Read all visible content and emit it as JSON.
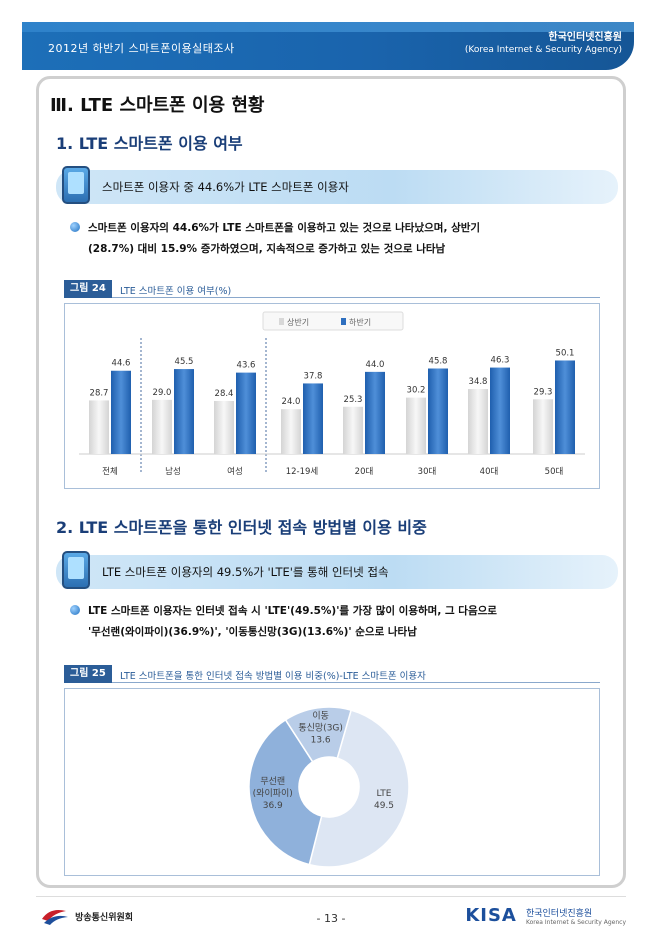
{
  "header": {
    "survey_title": "2012년 하반기 스마트폰이용실태조사",
    "org_name": "한국인터넷진흥원",
    "org_name_en": "(Korea Internet & Security Agency)"
  },
  "section_title": "Ⅲ. LTE 스마트폰 이용 현황",
  "sub1": {
    "title": "1. LTE 스마트폰 이용 여부",
    "highlight": "스마트폰 이용자 중 44.6%가 LTE 스마트폰 이용자",
    "para_line1": "스마트폰 이용자의 44.6%가 LTE 스마트폰을 이용하고 있는 것으로 나타났으며, 상반기",
    "para_line2": "(28.7%) 대비 15.9% 증가하였으며, 지속적으로 증가하고 있는 것으로 나타남",
    "fig_tag": "그림 24",
    "fig_caption": "LTE 스마트폰 이용 여부(%)"
  },
  "sub2": {
    "title": "2. LTE 스마트폰을 통한 인터넷 접속 방법별 이용 비중",
    "highlight": "LTE 스마트폰 이용자의 49.5%가 'LTE'를 통해 인터넷 접속",
    "para_line1": "LTE 스마트폰 이용자는 인터넷 접속 시 'LTE'(49.5%)'를 가장 많이 이용하며, 그 다음으로",
    "para_line2": "'무선랜(와이파이)(36.9%)', '이동통신망(3G)(13.6%)' 순으로 나타남",
    "fig_tag": "그림 25",
    "fig_caption": "LTE 스마트폰을 통한 인터넷 접속 방법별 이용 비중(%)-LTE 스마트폰 이용자"
  },
  "chart_data": [
    {
      "type": "bar",
      "categories": [
        "전체",
        "남성",
        "여성",
        "12-19세",
        "20대",
        "30대",
        "40대",
        "50대"
      ],
      "series": [
        {
          "name": "상반기",
          "values": [
            28.7,
            29.0,
            28.4,
            24.0,
            25.3,
            30.2,
            34.8,
            29.3
          ]
        },
        {
          "name": "하반기",
          "values": [
            44.6,
            45.5,
            43.6,
            37.8,
            44.0,
            45.8,
            46.3,
            50.1
          ]
        }
      ],
      "ylim": [
        0,
        60
      ],
      "legend": "top-center",
      "colors": {
        "상반기": "#e6e6e6",
        "하반기": "#2e6fbf"
      }
    },
    {
      "type": "pie",
      "slices": [
        {
          "label": "LTE",
          "value": 49.5
        },
        {
          "label": "무선랜\n(와이파이)",
          "value": 36.9
        },
        {
          "label": "이동\n통신망(3G)",
          "value": 13.6
        }
      ],
      "colors": [
        "#dde6f3",
        "#8fb1db",
        "#b9cde8"
      ],
      "donut": true
    }
  ],
  "footer": {
    "left_org": "방송통신위원회",
    "page": "- 13 -",
    "kisa": "KISA",
    "kisa_org": "한국인터넷진흥원",
    "kisa_org_en": "Korea Internet & Security Agency"
  }
}
